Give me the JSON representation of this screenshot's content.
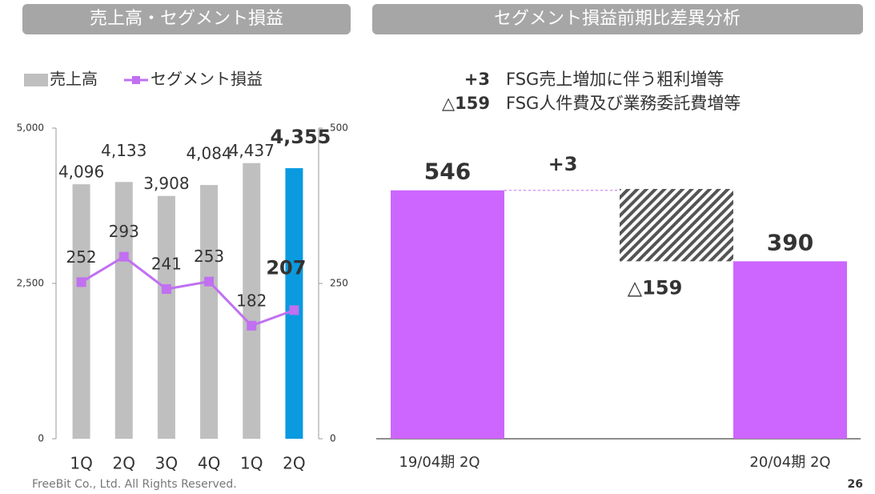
{
  "chart_data": [
    {
      "type": "bar_line",
      "title": "売上高・セグメント損益",
      "categories": [
        "1Q",
        "2Q",
        "3Q",
        "4Q",
        "1Q",
        "2Q"
      ],
      "series": [
        {
          "name": "売上高",
          "type": "bar",
          "colors": [
            "#bfbfbf",
            "#bfbfbf",
            "#bfbfbf",
            "#bfbfbf",
            "#bfbfbf",
            "#0a9ae0"
          ],
          "values": [
            4096,
            4133,
            3908,
            4084,
            4437,
            4355
          ],
          "value_labels": [
            "4,096",
            "4,133",
            "3,908",
            "4,084",
            "4,437",
            "4,355"
          ]
        },
        {
          "name": "セグメント損益",
          "type": "line",
          "axis": "y2",
          "color": "#c070f0",
          "values": [
            252,
            293,
            241,
            253,
            182,
            207
          ]
        }
      ],
      "ylim": [
        0,
        5000
      ],
      "yticks": [
        0,
        {
          "value": 2500,
          "label": "2,500"
        },
        {
          "value": 5000,
          "label": "5,000"
        }
      ],
      "y2lim": [
        0,
        500
      ],
      "y2ticks": [
        0,
        250,
        500
      ]
    },
    {
      "type": "waterfall",
      "title": "セグメント損益前期比差異分析",
      "categories": [
        "19/04期 2Q",
        null,
        null,
        "20/04期 2Q"
      ],
      "values": [
        546,
        3,
        -159,
        390
      ],
      "value_labels": [
        "546",
        "+3",
        "△159",
        "390"
      ],
      "color": "#cc66ff",
      "annotations": [
        {
          "label": "+3",
          "text": "FSG売上増加に伴う粗利増等"
        },
        {
          "label": "△159",
          "text": "FSG人件費及び業務委託費増等"
        }
      ]
    }
  ],
  "footer": "FreeBit Co., Ltd. All Rights Reserved.",
  "page_number": "26"
}
